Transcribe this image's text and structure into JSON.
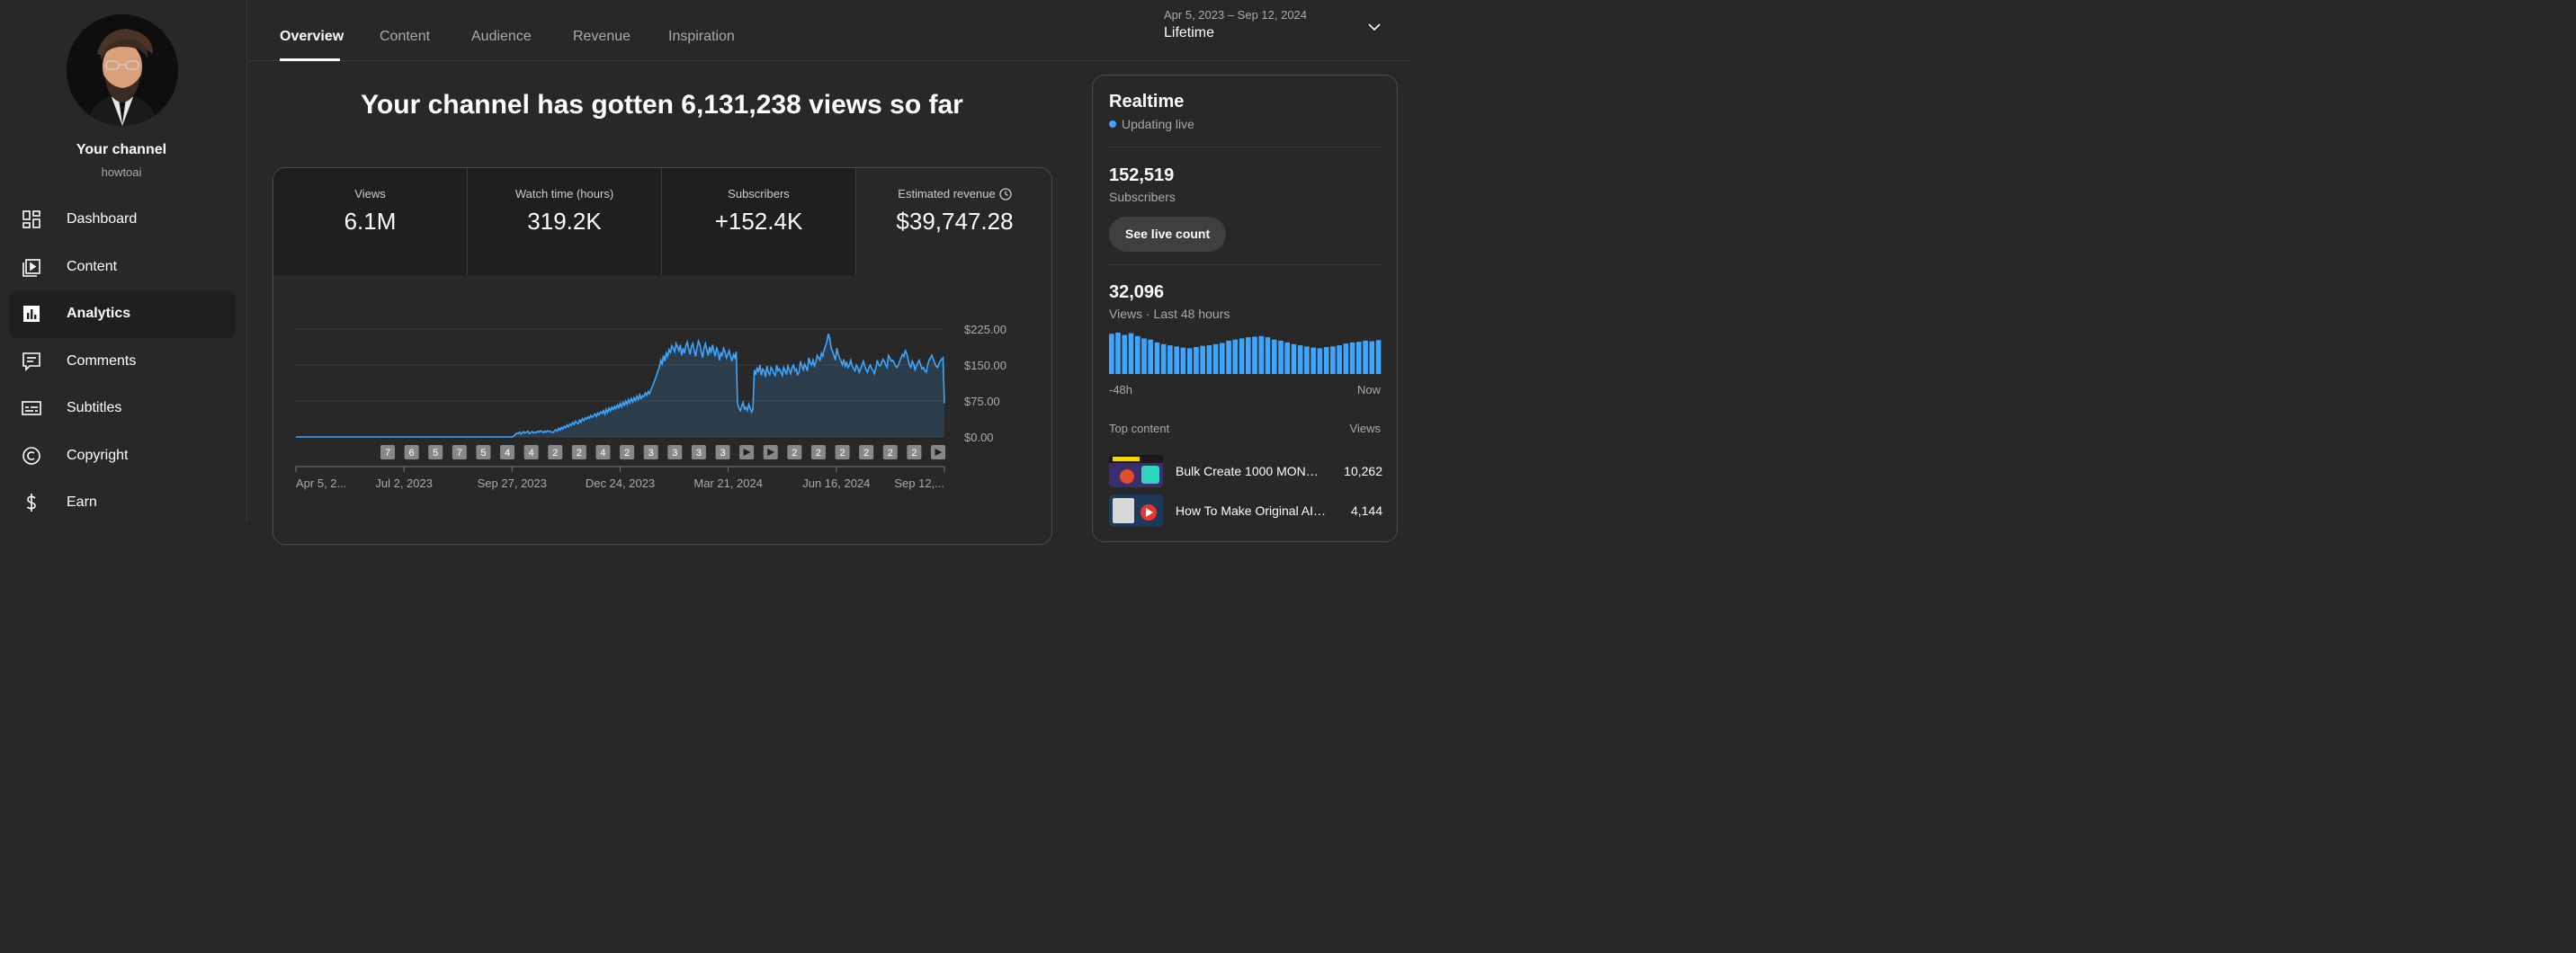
{
  "sidebar": {
    "channel_title": "Your channel",
    "channel_handle": "howtoai",
    "items": [
      {
        "label": "Dashboard",
        "icon": "dashboard-icon"
      },
      {
        "label": "Content",
        "icon": "content-icon"
      },
      {
        "label": "Analytics",
        "icon": "analytics-icon",
        "active": true
      },
      {
        "label": "Comments",
        "icon": "comments-icon"
      },
      {
        "label": "Subtitles",
        "icon": "subtitles-icon"
      },
      {
        "label": "Copyright",
        "icon": "copyright-icon"
      },
      {
        "label": "Earn",
        "icon": "earn-icon"
      }
    ]
  },
  "tabs": [
    {
      "label": "Overview",
      "active": true
    },
    {
      "label": "Content"
    },
    {
      "label": "Audience"
    },
    {
      "label": "Revenue"
    },
    {
      "label": "Inspiration"
    }
  ],
  "date_picker": {
    "range": "Apr 5, 2023 – Sep 12, 2024",
    "label": "Lifetime"
  },
  "headline": "Your channel has gotten 6,131,238 views so far",
  "metrics": [
    {
      "label": "Views",
      "value": "6.1M"
    },
    {
      "label": "Watch time (hours)",
      "value": "319.2K"
    },
    {
      "label": "Subscribers",
      "value": "+152.4K"
    },
    {
      "label": "Estimated revenue",
      "value": "$39,747.28",
      "selected": true
    }
  ],
  "chart_data": {
    "type": "area",
    "x_ticks": [
      "Apr 5, 2...",
      "Jul 2, 2023",
      "Sep 27, 2023",
      "Dec 24, 2023",
      "Mar 21, 2024",
      "Jun 16, 2024",
      "Sep 12,..."
    ],
    "y_ticks": [
      "$225.00",
      "$150.00",
      "$75.00",
      "$0.00"
    ],
    "ylim": [
      0,
      225
    ],
    "series": [
      {
        "values": [
          0,
          0,
          0,
          0,
          0,
          0,
          0,
          0,
          0,
          0,
          0,
          0,
          0,
          0,
          0,
          0,
          0,
          0,
          0,
          0,
          0,
          0,
          0,
          0,
          0,
          0,
          0,
          0,
          0,
          0,
          0,
          0,
          0,
          0,
          0,
          0,
          0,
          0,
          0,
          0,
          0,
          0,
          0,
          0,
          0,
          0,
          0,
          0,
          0,
          0,
          0,
          0,
          0,
          0,
          0,
          0,
          0,
          0,
          0,
          0,
          0,
          0,
          0,
          0,
          0,
          0,
          0,
          0,
          0,
          0,
          0,
          0,
          0,
          0,
          0,
          0,
          0,
          0,
          0,
          0,
          0,
          0,
          0,
          0,
          0,
          0,
          0,
          0,
          0,
          0,
          0,
          0,
          0,
          0,
          0,
          0,
          0,
          0,
          0,
          0,
          0,
          0,
          0,
          0,
          0,
          0,
          0,
          0,
          0,
          0,
          0,
          0,
          0,
          0,
          0,
          0,
          0,
          0,
          0,
          0,
          0,
          0,
          0,
          0,
          0,
          0,
          0,
          0,
          0,
          0,
          0,
          0,
          0,
          0,
          0,
          0,
          0,
          0,
          0,
          0,
          0,
          0,
          0,
          0,
          0,
          0,
          0,
          0,
          0,
          0,
          0,
          0,
          0,
          0,
          0,
          0,
          2,
          5,
          8,
          7,
          10,
          6,
          9,
          11,
          8,
          10,
          12,
          7,
          9,
          11,
          8,
          10,
          9,
          12,
          10,
          13,
          11,
          9,
          12,
          10,
          13,
          11,
          12,
          10,
          9,
          13,
          15,
          12,
          18,
          14,
          20,
          16,
          22,
          19,
          25,
          21,
          27,
          24,
          30,
          26,
          33,
          29,
          28,
          35,
          31,
          38,
          34,
          40,
          37,
          42,
          39,
          45,
          41,
          44,
          48,
          43,
          50,
          46,
          52,
          49,
          55,
          47,
          58,
          51,
          60,
          54,
          62,
          57,
          64,
          59,
          67,
          61,
          70,
          63,
          72,
          66,
          75,
          68,
          78,
          71,
          80,
          73,
          82,
          76,
          85,
          78,
          88,
          80,
          86,
          84,
          92,
          87,
          95,
          90,
          98,
          105,
          112,
          120,
          128,
          138,
          145,
          160,
          152,
          170,
          158,
          175,
          168,
          182,
          176,
          190,
          185,
          178,
          195,
          188,
          180,
          192,
          170,
          185,
          175,
          190,
          198,
          184,
          172,
          188,
          195,
          180,
          168,
          186,
          200,
          192,
          178,
          165,
          185,
          195,
          182,
          170,
          188,
          175,
          192,
          180,
          168,
          185,
          178,
          160,
          175,
          170,
          185,
          178,
          165,
          172,
          180,
          168,
          158,
          172,
          165,
          178,
          70,
          60,
          55,
          65,
          72,
          58,
          62,
          55,
          68,
          60,
          52,
          58,
          140,
          130,
          145,
          135,
          150,
          128,
          142,
          138,
          125,
          148,
          135,
          130,
          145,
          140,
          132,
          128,
          150,
          138,
          142,
          135,
          128,
          145,
          138,
          130,
          148,
          140,
          132,
          145,
          150,
          138,
          142,
          130,
          135,
          158,
          148,
          140,
          152,
          145,
          138,
          165,
          155,
          150,
          160,
          148,
          155,
          170,
          165,
          160,
          175,
          168,
          182,
          190,
          200,
          215,
          205,
          185,
          178,
          170,
          160,
          185,
          172,
          165,
          158,
          150,
          162,
          148,
          155,
          145,
          150,
          160,
          148,
          142,
          138,
          150,
          145,
          135,
          142,
          150,
          158,
          148,
          140,
          135,
          145,
          150,
          142,
          138,
          132,
          145,
          160,
          150,
          148,
          155,
          162,
          158,
          150,
          145,
          170,
          165,
          158,
          160,
          155,
          148,
          145,
          150,
          158,
          165,
          172,
          168,
          180,
          175,
          162,
          150,
          145,
          158,
          152,
          140,
          148,
          155,
          160,
          150,
          142,
          145,
          138,
          135,
          150,
          160,
          165,
          170,
          162,
          155,
          148,
          145,
          152,
          158,
          162,
          165,
          70
        ]
      }
    ],
    "markers": [
      "7",
      "6",
      "5",
      "7",
      "5",
      "4",
      "4",
      "2",
      "2",
      "4",
      "2",
      "3",
      "3",
      "3",
      "3",
      "",
      "",
      "2",
      "2",
      "2",
      "2",
      "2",
      "2",
      ""
    ]
  },
  "realtime": {
    "title": "Realtime",
    "live_label": "Updating live",
    "subscribers_value": "152,519",
    "subscribers_label": "Subscribers",
    "live_button": "See live count",
    "views_value": "32,096",
    "views_label": "Views · Last 48 hours",
    "bars": [
      70,
      72,
      68,
      71,
      66,
      62,
      60,
      55,
      52,
      50,
      48,
      46,
      45,
      47,
      49,
      50,
      52,
      54,
      58,
      60,
      62,
      64,
      65,
      66,
      64,
      60,
      58,
      55,
      52,
      50,
      48,
      46,
      45,
      47,
      48,
      50,
      53,
      55,
      56,
      58,
      57,
      59
    ],
    "axis_left": "-48h",
    "axis_right": "Now",
    "top_content_label": "Top content",
    "top_content_views": "Views",
    "top_content": [
      {
        "title": "Bulk Create 1000 MON…",
        "views": "10,262"
      },
      {
        "title": "How To Make Original AI…",
        "views": "4,144"
      }
    ]
  },
  "colors": {
    "accent": "#3ea6ff",
    "background": "#282828",
    "panel_dark": "#1f1f1f"
  }
}
